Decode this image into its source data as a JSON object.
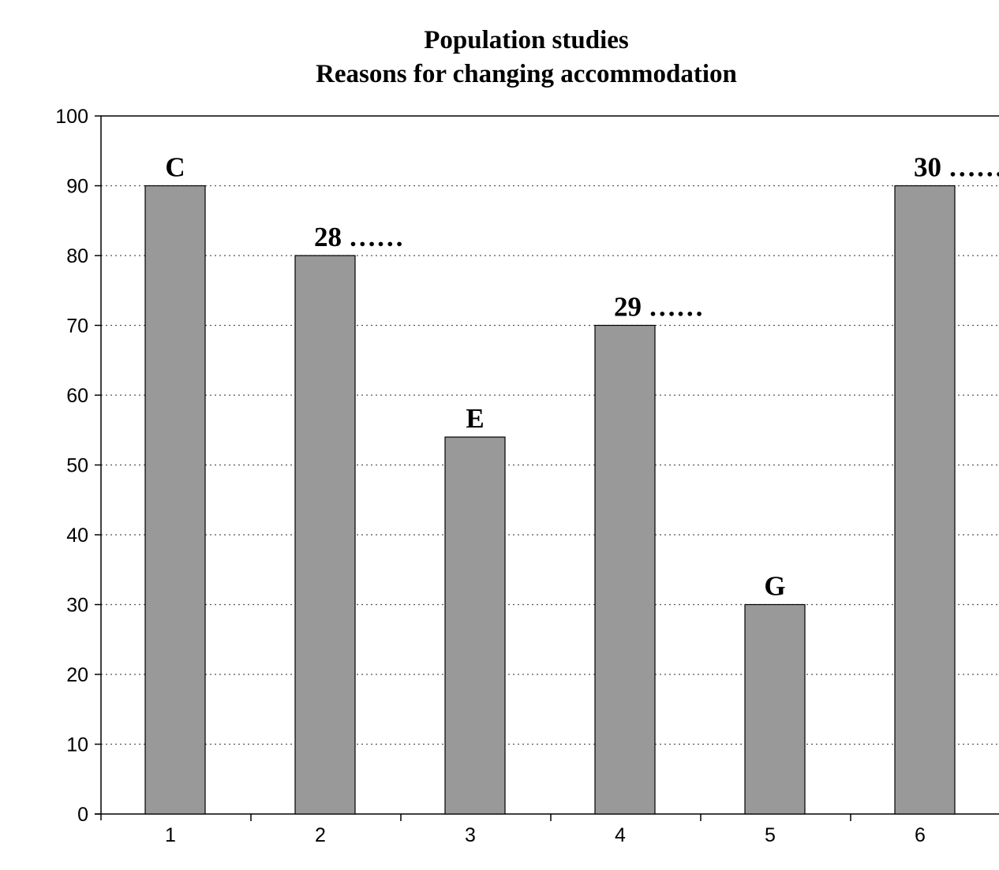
{
  "chart_data": {
    "type": "bar",
    "title": "Population studies",
    "subtitle": "Reasons for changing accommodation",
    "xlabel": "",
    "ylabel": "",
    "categories": [
      "1",
      "2",
      "3",
      "4",
      "5",
      "6"
    ],
    "values": [
      90,
      80,
      54,
      70,
      30,
      90
    ],
    "bar_labels": [
      "C",
      "28 ……",
      "E",
      "29 ……",
      "G",
      "30 ……"
    ],
    "ylim": [
      0,
      100
    ],
    "yticks": [
      0,
      10,
      20,
      30,
      40,
      50,
      60,
      70,
      80,
      90,
      100
    ],
    "grid": "horizontal dotted",
    "legend": "none",
    "bar_color": "#999999"
  }
}
